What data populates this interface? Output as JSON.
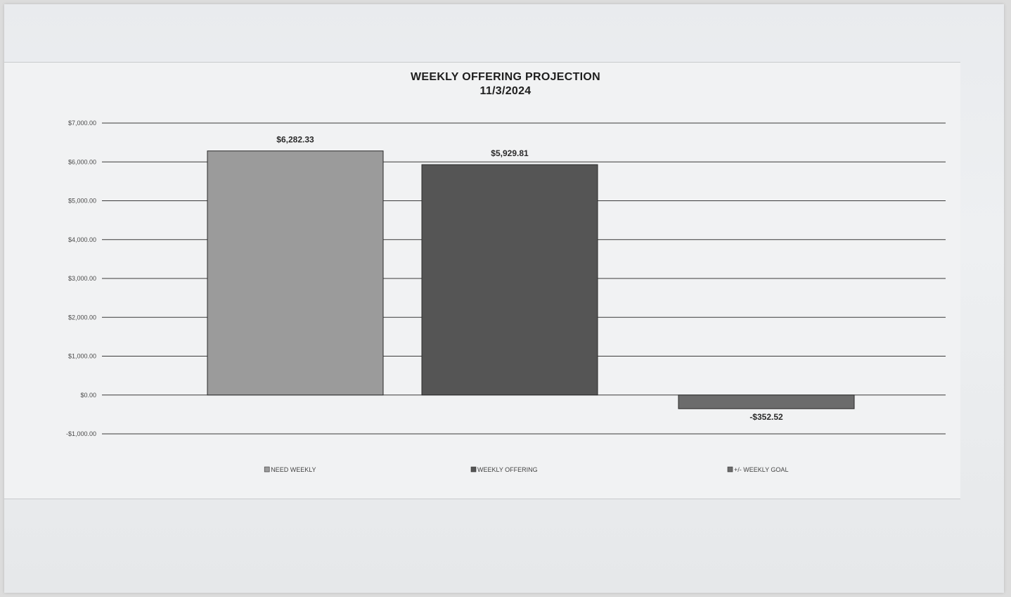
{
  "chart_data": {
    "type": "bar",
    "title": "WEEKLY OFFERING PROJECTION",
    "subtitle": "11/3/2024",
    "categories": [
      "NEED WEEKLY",
      "WEEKLY OFFERING",
      "+/- WEEKLY GOAL"
    ],
    "values": [
      6282.33,
      5929.81,
      -352.52
    ],
    "data_labels": [
      "$6,282.33",
      "$5,929.81",
      "-$352.52"
    ],
    "bar_colors": [
      "#9b9b9b",
      "#555555",
      "#6c6c6c"
    ],
    "ylim": [
      -1000,
      7000
    ],
    "y_ticks": [
      7000,
      6000,
      5000,
      4000,
      3000,
      2000,
      1000,
      0,
      -1000
    ],
    "y_tick_labels": [
      "$7,000.00",
      "$6,000.00",
      "$5,000.00",
      "$4,000.00",
      "$3,000.00",
      "$2,000.00",
      "$1,000.00",
      "$0.00",
      "-$1,000.00"
    ],
    "grid": true,
    "legend_position": "bottom"
  }
}
